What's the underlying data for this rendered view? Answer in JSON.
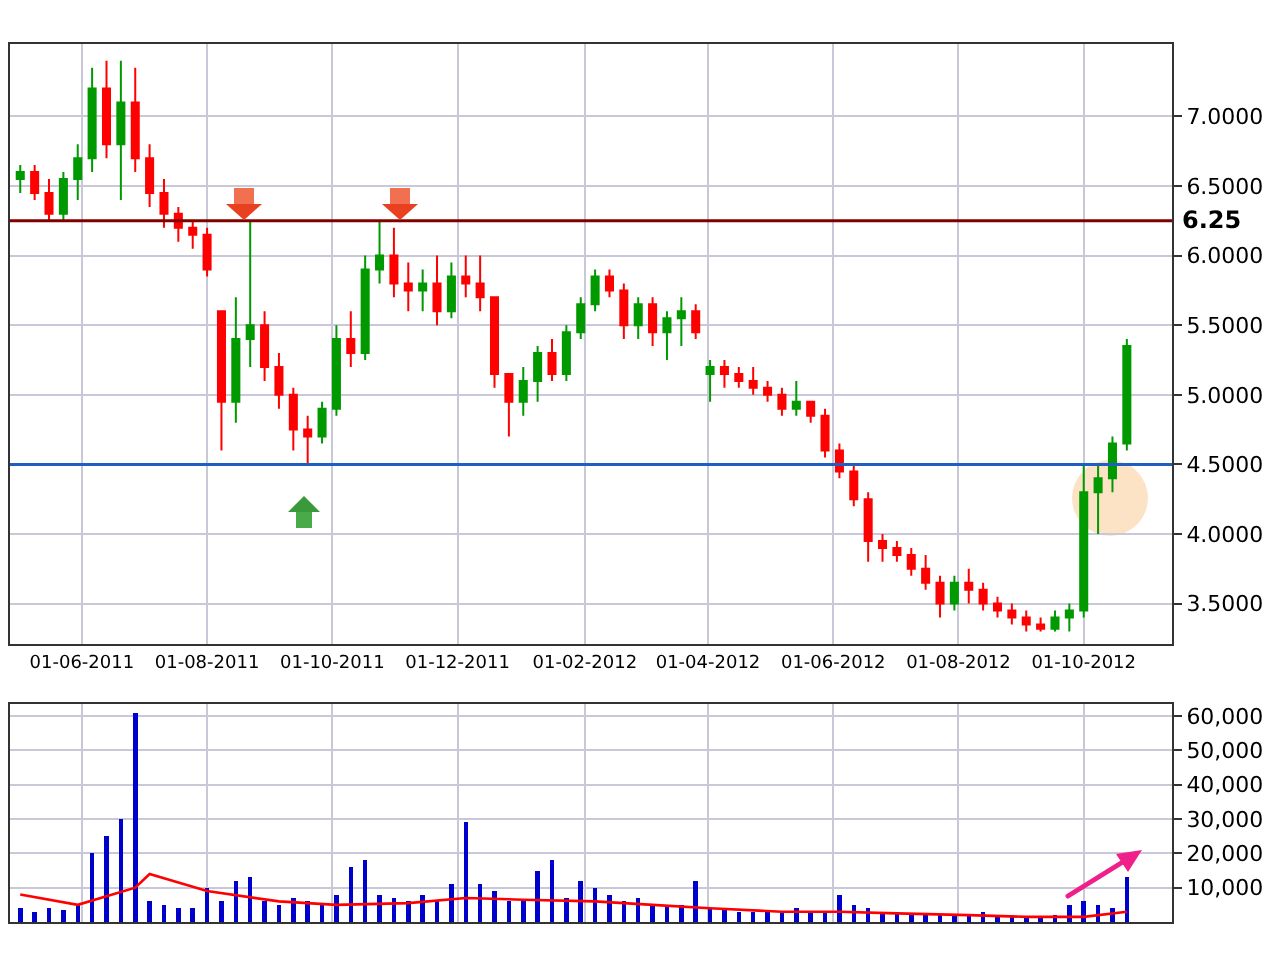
{
  "chart_data": [
    {
      "type": "candlestick",
      "x": [
        "2011-05-02",
        "2011-05-09",
        "2011-05-16",
        "2011-05-23",
        "2011-05-30",
        "2011-06-06",
        "2011-06-13",
        "2011-06-20",
        "2011-06-27",
        "2011-07-04",
        "2011-07-11",
        "2011-07-18",
        "2011-07-25",
        "2011-08-01",
        "2011-08-08",
        "2011-08-15",
        "2011-08-22",
        "2011-08-29",
        "2011-09-05",
        "2011-09-12",
        "2011-09-19",
        "2011-09-26",
        "2011-10-03",
        "2011-10-10",
        "2011-10-17",
        "2011-10-24",
        "2011-10-31",
        "2011-11-07",
        "2011-11-14",
        "2011-11-21",
        "2011-11-28",
        "2011-12-05",
        "2011-12-12",
        "2011-12-19",
        "2011-12-26",
        "2012-01-02",
        "2012-01-09",
        "2012-01-16",
        "2012-01-23",
        "2012-01-30",
        "2012-02-06",
        "2012-02-13",
        "2012-02-20",
        "2012-02-27",
        "2012-03-05",
        "2012-03-12",
        "2012-03-19",
        "2012-03-26",
        "2012-04-02",
        "2012-04-09",
        "2012-04-16",
        "2012-04-23",
        "2012-04-30",
        "2012-05-07",
        "2012-05-14",
        "2012-05-21",
        "2012-05-28",
        "2012-06-04",
        "2012-06-11",
        "2012-06-18",
        "2012-06-25",
        "2012-07-02",
        "2012-07-09",
        "2012-07-16",
        "2012-07-23",
        "2012-07-30",
        "2012-08-06",
        "2012-08-13",
        "2012-08-20",
        "2012-08-27",
        "2012-09-03",
        "2012-09-10",
        "2012-09-17",
        "2012-09-24",
        "2012-10-01",
        "2012-10-08",
        "2012-10-15",
        "2012-10-22"
      ],
      "ohlc": [
        [
          6.55,
          6.65,
          6.45,
          6.6
        ],
        [
          6.6,
          6.65,
          6.4,
          6.45
        ],
        [
          6.45,
          6.55,
          6.25,
          6.3
        ],
        [
          6.3,
          6.6,
          6.25,
          6.55
        ],
        [
          6.55,
          6.8,
          6.4,
          6.7
        ],
        [
          6.7,
          7.35,
          6.6,
          7.2
        ],
        [
          7.2,
          7.4,
          6.7,
          6.8
        ],
        [
          6.8,
          7.4,
          6.4,
          7.1
        ],
        [
          7.1,
          7.35,
          6.6,
          6.7
        ],
        [
          6.7,
          6.8,
          6.35,
          6.45
        ],
        [
          6.45,
          6.55,
          6.2,
          6.3
        ],
        [
          6.3,
          6.35,
          6.1,
          6.2
        ],
        [
          6.2,
          6.25,
          6.05,
          6.15
        ],
        [
          6.15,
          6.2,
          5.85,
          5.9
        ],
        [
          5.6,
          5.6,
          4.6,
          4.95
        ],
        [
          4.95,
          5.7,
          4.8,
          5.4
        ],
        [
          5.4,
          6.25,
          5.2,
          5.5
        ],
        [
          5.5,
          5.6,
          5.1,
          5.2
        ],
        [
          5.2,
          5.3,
          4.9,
          5.0
        ],
        [
          5.0,
          5.05,
          4.6,
          4.75
        ],
        [
          4.75,
          4.85,
          4.5,
          4.7
        ],
        [
          4.7,
          4.95,
          4.65,
          4.9
        ],
        [
          4.9,
          5.5,
          4.85,
          5.4
        ],
        [
          5.4,
          5.6,
          5.2,
          5.3
        ],
        [
          5.3,
          6.0,
          5.25,
          5.9
        ],
        [
          5.9,
          6.25,
          5.8,
          6.0
        ],
        [
          6.0,
          6.2,
          5.7,
          5.8
        ],
        [
          5.8,
          5.95,
          5.6,
          5.75
        ],
        [
          5.75,
          5.9,
          5.6,
          5.8
        ],
        [
          5.8,
          6.0,
          5.5,
          5.6
        ],
        [
          5.6,
          5.95,
          5.55,
          5.85
        ],
        [
          5.85,
          6.0,
          5.7,
          5.8
        ],
        [
          5.8,
          6.0,
          5.6,
          5.7
        ],
        [
          5.7,
          5.7,
          5.05,
          5.15
        ],
        [
          5.15,
          5.15,
          4.7,
          4.95
        ],
        [
          4.95,
          5.2,
          4.85,
          5.1
        ],
        [
          5.1,
          5.35,
          4.95,
          5.3
        ],
        [
          5.3,
          5.4,
          5.1,
          5.15
        ],
        [
          5.15,
          5.5,
          5.1,
          5.45
        ],
        [
          5.45,
          5.7,
          5.4,
          5.65
        ],
        [
          5.65,
          5.9,
          5.6,
          5.85
        ],
        [
          5.85,
          5.9,
          5.7,
          5.75
        ],
        [
          5.75,
          5.8,
          5.4,
          5.5
        ],
        [
          5.5,
          5.7,
          5.4,
          5.65
        ],
        [
          5.65,
          5.7,
          5.35,
          5.45
        ],
        [
          5.45,
          5.6,
          5.25,
          5.55
        ],
        [
          5.55,
          5.7,
          5.35,
          5.6
        ],
        [
          5.6,
          5.65,
          5.4,
          5.45
        ],
        [
          5.15,
          5.25,
          4.95,
          5.2
        ],
        [
          5.2,
          5.25,
          5.05,
          5.15
        ],
        [
          5.15,
          5.2,
          5.05,
          5.1
        ],
        [
          5.1,
          5.2,
          5.0,
          5.05
        ],
        [
          5.05,
          5.1,
          4.95,
          5.0
        ],
        [
          5.0,
          5.05,
          4.85,
          4.9
        ],
        [
          4.9,
          5.1,
          4.85,
          4.95
        ],
        [
          4.95,
          4.95,
          4.8,
          4.85
        ],
        [
          4.85,
          4.9,
          4.55,
          4.6
        ],
        [
          4.6,
          4.65,
          4.4,
          4.45
        ],
        [
          4.45,
          4.5,
          4.2,
          4.25
        ],
        [
          4.25,
          4.3,
          3.8,
          3.95
        ],
        [
          3.95,
          4.0,
          3.8,
          3.9
        ],
        [
          3.9,
          3.95,
          3.8,
          3.85
        ],
        [
          3.85,
          3.9,
          3.7,
          3.75
        ],
        [
          3.75,
          3.85,
          3.6,
          3.65
        ],
        [
          3.65,
          3.7,
          3.4,
          3.5
        ],
        [
          3.5,
          3.7,
          3.45,
          3.65
        ],
        [
          3.65,
          3.75,
          3.5,
          3.6
        ],
        [
          3.6,
          3.65,
          3.45,
          3.5
        ],
        [
          3.5,
          3.55,
          3.4,
          3.45
        ],
        [
          3.45,
          3.5,
          3.35,
          3.4
        ],
        [
          3.4,
          3.45,
          3.3,
          3.35
        ],
        [
          3.35,
          3.4,
          3.3,
          3.32
        ],
        [
          3.32,
          3.45,
          3.3,
          3.4
        ],
        [
          3.4,
          3.5,
          3.3,
          3.45
        ],
        [
          3.45,
          4.5,
          3.4,
          4.3
        ],
        [
          4.3,
          4.5,
          4.0,
          4.4
        ],
        [
          4.4,
          4.7,
          4.3,
          4.65
        ],
        [
          4.65,
          5.4,
          4.6,
          5.35
        ]
      ],
      "xlim": [
        "2011-04-27",
        "2012-11-13"
      ],
      "xticks": [
        {
          "value": "2011-06-01",
          "label": "01-06-2011"
        },
        {
          "value": "2011-08-01",
          "label": "01-08-2011"
        },
        {
          "value": "2011-10-01",
          "label": "01-10-2011"
        },
        {
          "value": "2011-12-01",
          "label": "01-12-2011"
        },
        {
          "value": "2012-02-01",
          "label": "01-02-2012"
        },
        {
          "value": "2012-04-01",
          "label": "01-04-2012"
        },
        {
          "value": "2012-06-01",
          "label": "01-06-2012"
        },
        {
          "value": "2012-08-01",
          "label": "01-08-2012"
        },
        {
          "value": "2012-10-01",
          "label": "01-10-2012"
        }
      ],
      "ylim": [
        3.21,
        7.52
      ],
      "yticks": [
        {
          "value": 3.5,
          "label": "3.5000"
        },
        {
          "value": 4,
          "label": "4.0000"
        },
        {
          "value": 4.5,
          "label": "4.5000"
        },
        {
          "value": 5,
          "label": "5.0000"
        },
        {
          "value": 5.5,
          "label": "5.5000"
        },
        {
          "value": 6,
          "label": "6.0000"
        },
        {
          "value": 6.5,
          "label": "6.5000"
        },
        {
          "value": 7,
          "label": "7.0000"
        }
      ],
      "ref_lines": [
        {
          "axis": "y",
          "value": 6.25,
          "label": "6.25",
          "color": "#800000"
        },
        {
          "axis": "y",
          "value": 4.5,
          "color": "#1f5fbf"
        }
      ],
      "grid": true
    },
    {
      "type": "bar",
      "x": [
        "2011-05-02",
        "2011-05-09",
        "2011-05-16",
        "2011-05-23",
        "2011-05-30",
        "2011-06-06",
        "2011-06-13",
        "2011-06-20",
        "2011-06-27",
        "2011-07-04",
        "2011-07-11",
        "2011-07-18",
        "2011-07-25",
        "2011-08-01",
        "2011-08-08",
        "2011-08-15",
        "2011-08-22",
        "2011-08-29",
        "2011-09-05",
        "2011-09-12",
        "2011-09-19",
        "2011-09-26",
        "2011-10-03",
        "2011-10-10",
        "2011-10-17",
        "2011-10-24",
        "2011-10-31",
        "2011-11-07",
        "2011-11-14",
        "2011-11-21",
        "2011-11-28",
        "2011-12-05",
        "2011-12-12",
        "2011-12-19",
        "2011-12-26",
        "2012-01-02",
        "2012-01-09",
        "2012-01-16",
        "2012-01-23",
        "2012-01-30",
        "2012-02-06",
        "2012-02-13",
        "2012-02-20",
        "2012-02-27",
        "2012-03-05",
        "2012-03-12",
        "2012-03-19",
        "2012-03-26",
        "2012-04-02",
        "2012-04-09",
        "2012-04-16",
        "2012-04-23",
        "2012-04-30",
        "2012-05-07",
        "2012-05-14",
        "2012-05-21",
        "2012-05-28",
        "2012-06-04",
        "2012-06-11",
        "2012-06-18",
        "2012-06-25",
        "2012-07-02",
        "2012-07-09",
        "2012-07-16",
        "2012-07-23",
        "2012-07-30",
        "2012-08-06",
        "2012-08-13",
        "2012-08-20",
        "2012-08-27",
        "2012-09-03",
        "2012-09-10",
        "2012-09-17",
        "2012-09-24",
        "2012-10-01",
        "2012-10-08",
        "2012-10-15",
        "2012-10-22"
      ],
      "series": [
        {
          "color": "#0000cc",
          "values": [
            4000,
            3000,
            4000,
            3500,
            5000,
            20000,
            25000,
            30000,
            61000,
            6000,
            5000,
            4000,
            4000,
            10000,
            6000,
            12000,
            13000,
            6000,
            5000,
            7000,
            6000,
            5000,
            8000,
            16000,
            18000,
            8000,
            7000,
            6000,
            8000,
            6000,
            11000,
            29000,
            11000,
            9000,
            6000,
            6000,
            15000,
            18000,
            7000,
            12000,
            10000,
            8000,
            6000,
            7000,
            5000,
            5000,
            5000,
            12000,
            4000,
            4000,
            3000,
            3000,
            3000,
            3000,
            4000,
            3000,
            3000,
            8000,
            5000,
            4000,
            3000,
            3000,
            2000,
            2000,
            2000,
            2000,
            2000,
            3000,
            2000,
            2000,
            1500,
            1500,
            2000,
            5000,
            6000,
            5000,
            4000,
            13000
          ]
        },
        {
          "type": "line",
          "color": "#ff0000",
          "x": [
            "2011-05-02",
            "2011-05-30",
            "2011-06-27",
            "2011-07-04",
            "2011-08-01",
            "2011-09-05",
            "2011-10-03",
            "2011-11-07",
            "2011-12-05",
            "2012-01-02",
            "2012-02-06",
            "2012-03-05",
            "2012-04-02",
            "2012-05-07",
            "2012-06-04",
            "2012-07-02",
            "2012-08-06",
            "2012-09-03",
            "2012-10-01",
            "2012-10-22"
          ],
          "values": [
            8000,
            5000,
            10000,
            14000,
            9000,
            6000,
            5000,
            5500,
            7000,
            6500,
            6000,
            5000,
            4000,
            3000,
            3000,
            2500,
            2000,
            1500,
            1500,
            3000
          ]
        }
      ],
      "xlim": [
        "2011-04-27",
        "2012-11-13"
      ],
      "xticks": [
        {
          "value": "2011-06-01",
          "label": null
        },
        {
          "value": "2011-08-01",
          "label": null
        },
        {
          "value": "2011-10-01",
          "label": null
        },
        {
          "value": "2011-12-01",
          "label": null
        },
        {
          "value": "2012-02-01",
          "label": null
        },
        {
          "value": "2012-04-01",
          "label": null
        },
        {
          "value": "2012-06-01",
          "label": null
        },
        {
          "value": "2012-08-01",
          "label": null
        },
        {
          "value": "2012-10-01",
          "label": null
        }
      ],
      "ylim": [
        0,
        63500
      ],
      "yticks": [
        {
          "value": 10000,
          "label": "10,000"
        },
        {
          "value": 20000,
          "label": "20,000"
        },
        {
          "value": 30000,
          "label": "30,000"
        },
        {
          "value": 40000,
          "label": "40,000"
        },
        {
          "value": 50000,
          "label": "50,000"
        },
        {
          "value": 60000,
          "label": "60,000"
        }
      ],
      "grid": true,
      "tick_labels": "y"
    }
  ]
}
